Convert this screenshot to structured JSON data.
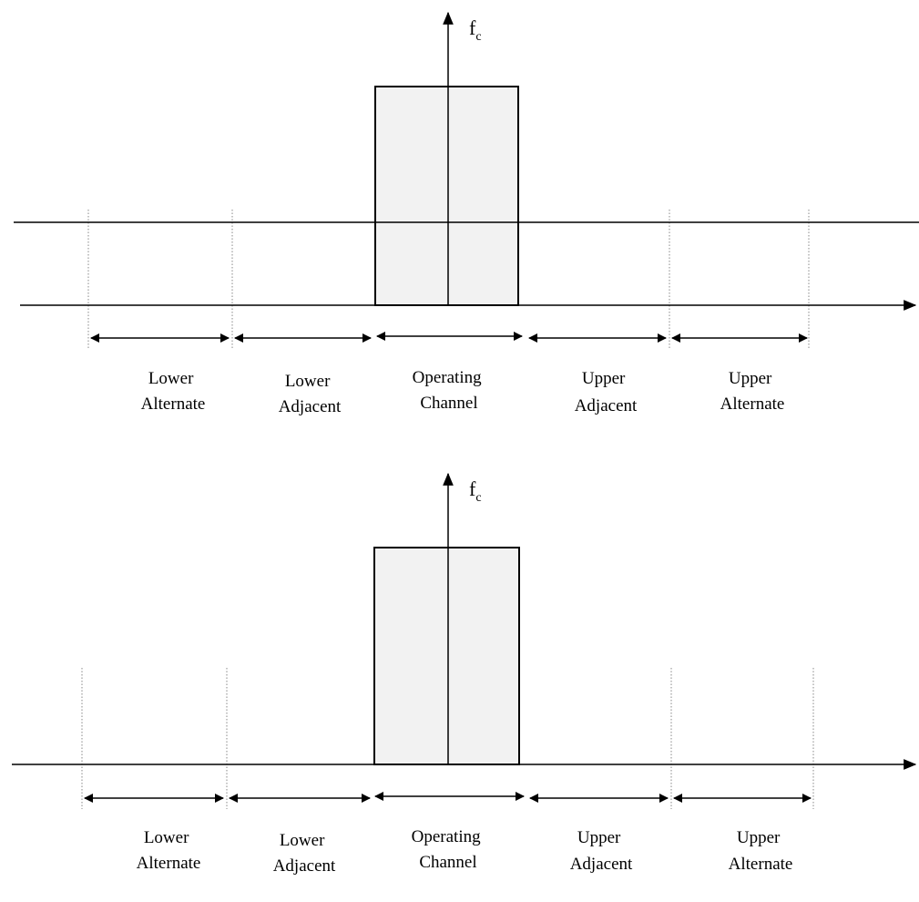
{
  "panels": [
    {
      "id": "top",
      "fc_label": "f",
      "fc_subscript": "c",
      "threshold_line": true,
      "segments": [
        {
          "line1": "Lower",
          "line2": "Alternate"
        },
        {
          "line1": "Lower",
          "line2": "Adjacent"
        },
        {
          "line1": "Operating",
          "line2": "Channel"
        },
        {
          "line1": "Upper",
          "line2": "Adjacent"
        },
        {
          "line1": "Upper",
          "line2": "Alternate"
        }
      ]
    },
    {
      "id": "bottom",
      "fc_label": "f",
      "fc_subscript": "c",
      "threshold_line": false,
      "segments": [
        {
          "line1": "Lower",
          "line2": "Alternate"
        },
        {
          "line1": "Lower",
          "line2": "Adjacent"
        },
        {
          "line1": "Operating",
          "line2": "Channel"
        },
        {
          "line1": "Upper",
          "line2": "Adjacent"
        },
        {
          "line1": "Upper",
          "line2": "Alternate"
        }
      ]
    }
  ],
  "colors": {
    "line": "#000000",
    "channel_fill": "#f2f2f2",
    "divider": "#888888"
  }
}
